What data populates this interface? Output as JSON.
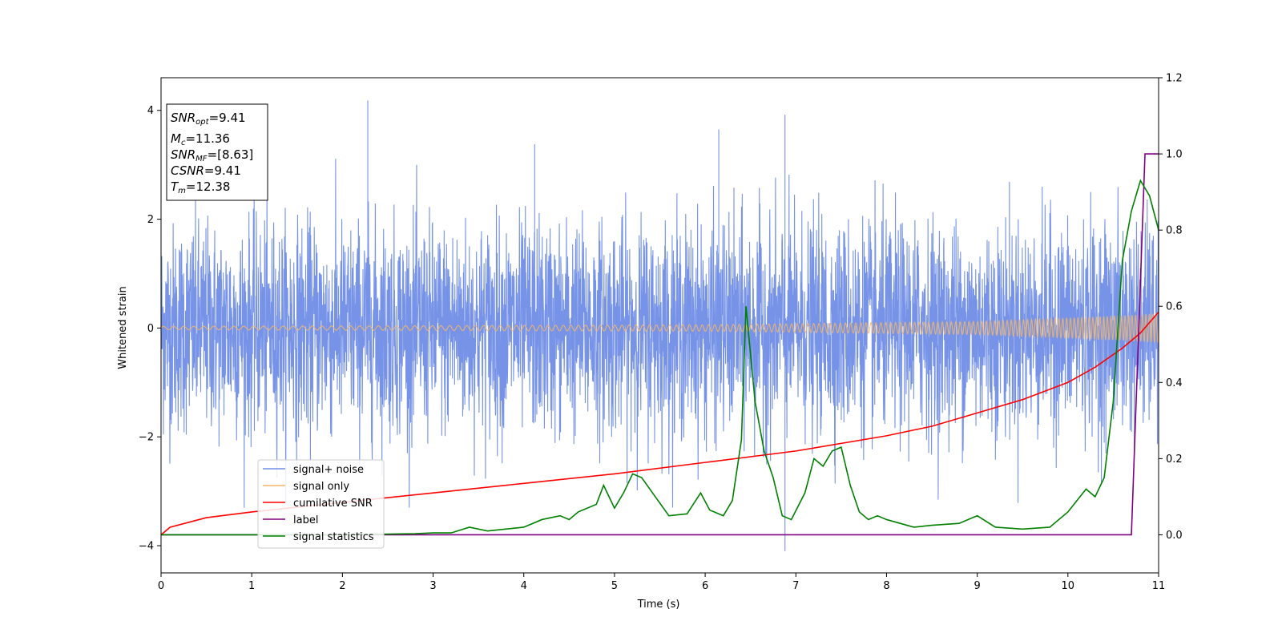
{
  "chart_data": {
    "type": "line",
    "xlabel": "Time (s)",
    "ylabel_left": "Whitened strain",
    "ylabel_right": "",
    "xlim": [
      0,
      11
    ],
    "ylim_left": [
      -4.5,
      4.6
    ],
    "ylim_right": [
      -0.1,
      1.2
    ],
    "x_ticks": [
      0,
      1,
      2,
      3,
      4,
      5,
      6,
      7,
      8,
      9,
      10,
      11
    ],
    "y_ticks_left": [
      -4,
      -2,
      0,
      2,
      4
    ],
    "y_ticks_right": [
      0.0,
      0.2,
      0.4,
      0.6,
      0.8,
      1.0,
      1.2
    ],
    "y_tick_labels_right": [
      "0.0",
      "0.2",
      "0.4",
      "0.6",
      "0.8",
      "1.0",
      "1.2"
    ],
    "legend_placement": "lower-left",
    "info_box": {
      "snr_opt": {
        "base": "SNR",
        "sub": "opt",
        "value": "=9.41"
      },
      "mc": {
        "base": "M",
        "sub": "c",
        "value": "=11.36"
      },
      "snr_mf": {
        "base": "SNR",
        "sub": "MF",
        "value": "=[8.63]"
      },
      "csnr": {
        "base": "CSNR",
        "value": "=9.41"
      },
      "tm": {
        "base": "T",
        "sub": "m",
        "value": "=12.38"
      }
    },
    "series": [
      {
        "name": "signal+ noise",
        "axis": "left",
        "color": "#6f8de6",
        "description": "dense noisy strain, approx ±2.5 with spikes up to 4.2 and down to -4.1",
        "peaks": [
          [
            2.28,
            4.18
          ],
          [
            6.88,
            3.92
          ],
          [
            6.88,
            -4.1
          ],
          [
            6.15,
            3.65
          ],
          [
            4.12,
            3.38
          ]
        ]
      },
      {
        "name": "signal only",
        "axis": "left",
        "color": "#f2b56b",
        "description": "chirp oscillation around 0, amplitude growing from 0.03 to 0.25",
        "amplitude_points": [
          [
            0,
            0.03
          ],
          [
            6,
            0.06
          ],
          [
            9,
            0.12
          ],
          [
            10.5,
            0.22
          ],
          [
            11,
            0.27
          ]
        ]
      },
      {
        "name": "cumilative SNR",
        "axis": "right",
        "color": "#ff0000",
        "points": [
          [
            0,
            0.0
          ],
          [
            0.1,
            0.02
          ],
          [
            0.5,
            0.045
          ],
          [
            1,
            0.06
          ],
          [
            2,
            0.085
          ],
          [
            3,
            0.11
          ],
          [
            4,
            0.135
          ],
          [
            5,
            0.16
          ],
          [
            6,
            0.19
          ],
          [
            7,
            0.22
          ],
          [
            8,
            0.26
          ],
          [
            8.5,
            0.285
          ],
          [
            9,
            0.32
          ],
          [
            9.5,
            0.355
          ],
          [
            10,
            0.4
          ],
          [
            10.3,
            0.44
          ],
          [
            10.6,
            0.49
          ],
          [
            10.8,
            0.53
          ],
          [
            11,
            0.585
          ]
        ]
      },
      {
        "name": "label",
        "axis": "right",
        "color": "#800080",
        "points": [
          [
            0,
            0
          ],
          [
            10.7,
            0
          ],
          [
            10.85,
            1
          ],
          [
            11,
            1
          ]
        ]
      },
      {
        "name": "signal statistics",
        "axis": "right",
        "color": "#008000",
        "points": [
          [
            0,
            0
          ],
          [
            1,
            0
          ],
          [
            2,
            0
          ],
          [
            2.8,
            0.003
          ],
          [
            3,
            0.005
          ],
          [
            3.2,
            0.005
          ],
          [
            3.4,
            0.02
          ],
          [
            3.6,
            0.01
          ],
          [
            3.8,
            0.015
          ],
          [
            4.0,
            0.02
          ],
          [
            4.2,
            0.04
          ],
          [
            4.4,
            0.05
          ],
          [
            4.5,
            0.04
          ],
          [
            4.6,
            0.06
          ],
          [
            4.8,
            0.08
          ],
          [
            4.88,
            0.13
          ],
          [
            5.0,
            0.07
          ],
          [
            5.1,
            0.11
          ],
          [
            5.2,
            0.16
          ],
          [
            5.3,
            0.15
          ],
          [
            5.45,
            0.1
          ],
          [
            5.6,
            0.05
          ],
          [
            5.8,
            0.055
          ],
          [
            5.95,
            0.11
          ],
          [
            6.05,
            0.065
          ],
          [
            6.2,
            0.05
          ],
          [
            6.3,
            0.09
          ],
          [
            6.4,
            0.25
          ],
          [
            6.45,
            0.6
          ],
          [
            6.55,
            0.35
          ],
          [
            6.65,
            0.22
          ],
          [
            6.75,
            0.15
          ],
          [
            6.85,
            0.05
          ],
          [
            6.95,
            0.04
          ],
          [
            7.1,
            0.11
          ],
          [
            7.2,
            0.2
          ],
          [
            7.3,
            0.18
          ],
          [
            7.4,
            0.22
          ],
          [
            7.5,
            0.23
          ],
          [
            7.6,
            0.13
          ],
          [
            7.7,
            0.06
          ],
          [
            7.8,
            0.04
          ],
          [
            7.9,
            0.05
          ],
          [
            8.0,
            0.04
          ],
          [
            8.3,
            0.02
          ],
          [
            8.5,
            0.025
          ],
          [
            8.8,
            0.03
          ],
          [
            9.0,
            0.05
          ],
          [
            9.2,
            0.02
          ],
          [
            9.5,
            0.015
          ],
          [
            9.8,
            0.02
          ],
          [
            10.0,
            0.06
          ],
          [
            10.2,
            0.12
          ],
          [
            10.3,
            0.1
          ],
          [
            10.4,
            0.15
          ],
          [
            10.5,
            0.35
          ],
          [
            10.6,
            0.72
          ],
          [
            10.7,
            0.85
          ],
          [
            10.8,
            0.93
          ],
          [
            10.9,
            0.89
          ],
          [
            11,
            0.8
          ]
        ]
      }
    ]
  }
}
